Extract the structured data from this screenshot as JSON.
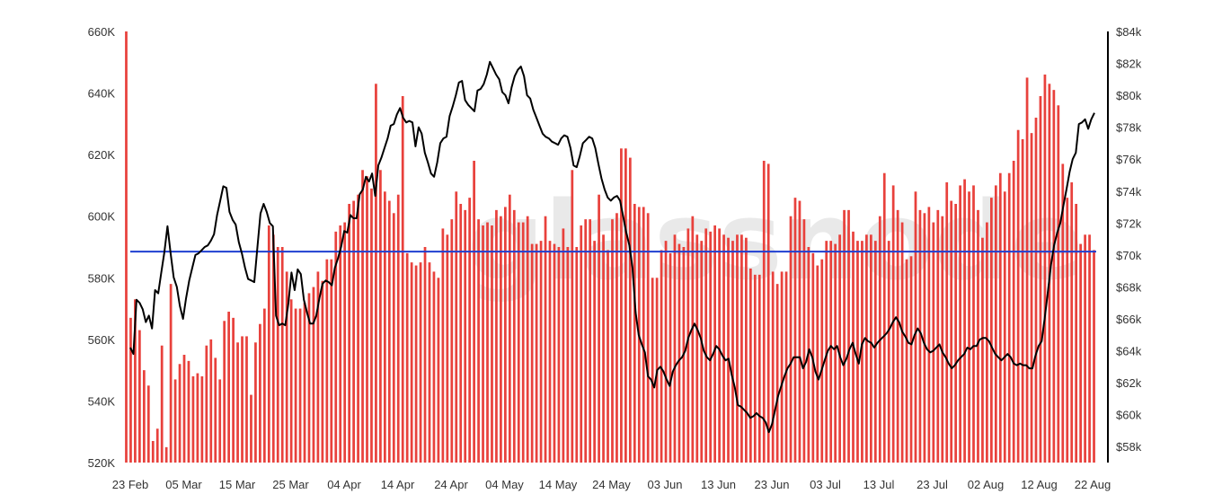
{
  "chart_data": {
    "type": "bar",
    "x_tick_labels": [
      "23 Feb",
      "05 Mar",
      "15 Mar",
      "25 Mar",
      "04 Apr",
      "14 Apr",
      "24 Apr",
      "04 May",
      "14 May",
      "24 May",
      "03 Jun",
      "13 Jun",
      "23 Jun",
      "03 Jul",
      "13 Jul",
      "23 Jul",
      "02 Aug",
      "12 Aug",
      "22 Aug"
    ],
    "y_left_ticks": [
      "520K",
      "540K",
      "560K",
      "580K",
      "600K",
      "620K",
      "640K",
      "660K"
    ],
    "y_right_ticks": [
      "$58k",
      "$60k",
      "$62k",
      "$64k",
      "$66k",
      "$68k",
      "$70k",
      "$72k",
      "$74k",
      "$76k",
      "$78k",
      "$80k",
      "$82k",
      "$84k"
    ],
    "y_left_range": [
      520000,
      660000
    ],
    "y_right_range": [
      57000,
      84000
    ],
    "colors": {
      "bars": "#e8413c",
      "price_line": "#000000",
      "reference_line": "#1f3fd1",
      "axis": "#000000"
    },
    "grid": false,
    "reference_line_value": 588500,
    "series": [
      {
        "type": "bar",
        "axis": "left",
        "values": [
          660000,
          567000,
          573000,
          563000,
          550000,
          545000,
          527000,
          531000,
          558000,
          525000,
          578000,
          547000,
          552000,
          555000,
          553000,
          548000,
          549000,
          548000,
          558000,
          560000,
          554000,
          547000,
          566000,
          569000,
          567000,
          559000,
          561000,
          561000,
          542000,
          559000,
          565000,
          570000,
          597000,
          594000,
          590000,
          590000,
          582000,
          573000,
          570000,
          570000,
          572000,
          575000,
          577000,
          582000,
          579000,
          586000,
          586000,
          595000,
          597000,
          598000,
          604000,
          605000,
          607000,
          615000,
          613000,
          609000,
          643000,
          615000,
          608000,
          605000,
          601000,
          607000,
          639000,
          588000,
          585000,
          584000,
          585000,
          590000,
          585000,
          582000,
          580000,
          596000,
          594000,
          599000,
          608000,
          604000,
          602000,
          606000,
          618000,
          599000,
          597000,
          598000,
          597000,
          602000,
          600000,
          603000,
          607000,
          602000,
          598000,
          598000,
          600000,
          591000,
          591000,
          592000,
          600000,
          592000,
          591000,
          590000,
          596000,
          590000,
          615000,
          590000,
          597000,
          599000,
          599000,
          592000,
          607000,
          594000,
          589000,
          599000,
          601000,
          622000,
          622000,
          619000,
          604000,
          603000,
          603000,
          601000,
          580000,
          580000,
          589000,
          592000,
          588000,
          594000,
          591000,
          590000,
          596000,
          600000,
          594000,
          592000,
          596000,
          595000,
          597000,
          596000,
          594000,
          593000,
          592000,
          594000,
          594000,
          593000,
          583000,
          581000,
          581000,
          618000,
          617000,
          582000,
          578000,
          582000,
          582000,
          600000,
          606000,
          605000,
          599000,
          590000,
          588000,
          584000,
          586000,
          592000,
          592000,
          591000,
          594000,
          602000,
          602000,
          595000,
          592000,
          592000,
          594000,
          594000,
          592000,
          600000,
          614000,
          592000,
          610000,
          602000,
          598000,
          586000,
          587000,
          608000,
          602000,
          601000,
          603000,
          598000,
          602000,
          600000,
          611000,
          605000,
          604000,
          610000,
          612000,
          608000,
          610000,
          602000,
          593000,
          598000,
          606000,
          610000,
          614000,
          608000,
          614000,
          618000,
          628000,
          625000,
          645000,
          627000,
          632000,
          639000,
          646000,
          643000,
          641000,
          636000,
          617000,
          606000,
          611000,
          604000,
          591000,
          594000,
          594000,
          589000
        ]
      },
      {
        "type": "line",
        "axis": "right",
        "values": [
          64200,
          63800,
          67200,
          67000,
          66600,
          65800,
          66200,
          65400,
          67800,
          67600,
          68900,
          70200,
          71800,
          70100,
          68600,
          68000,
          66800,
          66000,
          67300,
          68400,
          69200,
          70000,
          70100,
          70300,
          70500,
          70600,
          70900,
          71300,
          72500,
          73400,
          74300,
          74200,
          72700,
          72200,
          71900,
          70800,
          70100,
          69200,
          68500,
          68400,
          68300,
          70500,
          72600,
          73200,
          72700,
          72000,
          71800,
          66200,
          65600,
          65700,
          65600,
          67000,
          68900,
          67800,
          69100,
          68800,
          67200,
          66400,
          65700,
          65700,
          66200,
          67300,
          68200,
          68400,
          68300,
          68100,
          69200,
          69800,
          70500,
          71500,
          71400,
          72500,
          72300,
          72300,
          73800,
          74100,
          74900,
          74600,
          75100,
          73700,
          75600,
          76100,
          76700,
          77300,
          78100,
          78200,
          78800,
          79200,
          78600,
          78300,
          78400,
          78300,
          76800,
          78000,
          77600,
          76400,
          75800,
          75100,
          74900,
          75800,
          77000,
          77300,
          77400,
          78700,
          79300,
          80000,
          80800,
          80900,
          79700,
          79400,
          79200,
          79000,
          80300,
          80400,
          80700,
          81300,
          82100,
          81700,
          81300,
          81000,
          80200,
          80000,
          79500,
          80500,
          81200,
          81600,
          81800,
          81200,
          80000,
          79800,
          79100,
          78600,
          78100,
          77600,
          77400,
          77300,
          77100,
          77000,
          76900,
          77300,
          77500,
          77400,
          76700,
          75600,
          75500,
          76200,
          77000,
          77200,
          77400,
          77300,
          76700,
          75700,
          74800,
          74100,
          73600,
          73400,
          73600,
          73700,
          73400,
          72400,
          71400,
          70600,
          69200,
          66400,
          65000,
          64400,
          63900,
          62400,
          62200,
          61700,
          62800,
          63000,
          62700,
          62200,
          61800,
          62700,
          63100,
          63400,
          63600,
          64000,
          64800,
          65300,
          65700,
          65300,
          64800,
          64000,
          63600,
          63400,
          63800,
          64300,
          64100,
          63700,
          63400,
          63500,
          62500,
          61700,
          60600,
          60500,
          60300,
          60100,
          59800,
          59900,
          60100,
          59900,
          59800,
          59500,
          58900,
          59400,
          60300,
          61200,
          61800,
          62400,
          62900,
          63200,
          63600,
          63600,
          63600,
          62900,
          63300,
          64100,
          63600,
          62700,
          62200,
          62800,
          63400,
          64000,
          64300,
          64100,
          64300,
          63600,
          63100,
          63500,
          64100,
          64500,
          63800,
          63200,
          64400,
          64800,
          64600,
          64500,
          64200,
          64500,
          64700,
          64900,
          65100,
          65400,
          65800,
          66100,
          65800,
          65200,
          64900,
          64500,
          64400,
          65000,
          65400,
          65100,
          64500,
          64100,
          63900,
          64000,
          64200,
          64400,
          63900,
          63600,
          63200,
          62900,
          63100,
          63400,
          63600,
          63800,
          64200,
          64100,
          64300,
          64300,
          64700,
          64800,
          64800,
          64600,
          64200,
          63800,
          63600,
          63400,
          63600,
          63800,
          63600,
          63200,
          63100,
          63200,
          63100,
          63100,
          62900,
          62900,
          63700,
          64300,
          64600,
          66100,
          67700,
          69400,
          70600,
          71400,
          72000,
          73100,
          74100,
          75200,
          76000,
          76400,
          78200,
          78300,
          78500,
          77900,
          78500,
          78900
        ]
      }
    ]
  }
}
